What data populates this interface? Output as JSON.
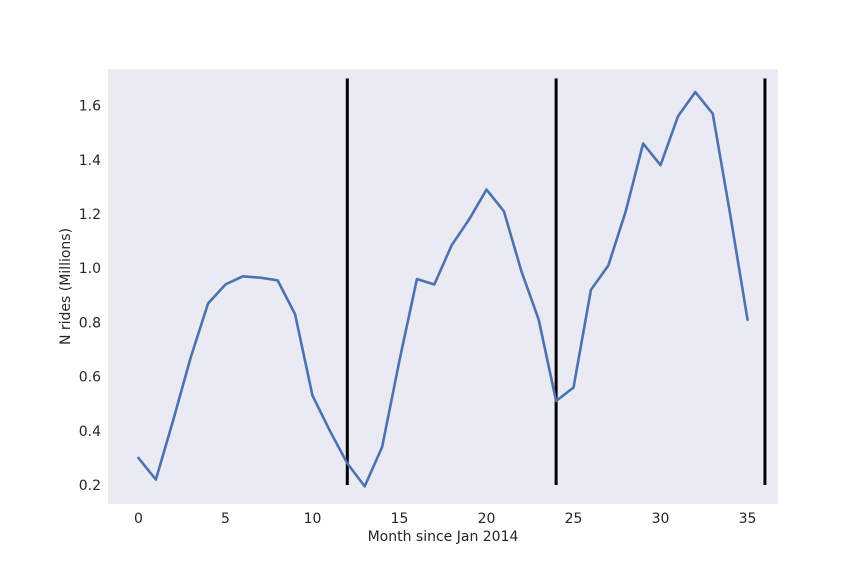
{
  "chart_data": {
    "type": "line",
    "title": "",
    "xlabel": "Month since Jan 2014",
    "ylabel": "N rides (Millions)",
    "xlim": [
      -1.75,
      36.75
    ],
    "ylim": [
      0.13,
      1.735
    ],
    "x_ticks": [
      0,
      5,
      10,
      15,
      20,
      25,
      30,
      35
    ],
    "y_ticks": [
      0.2,
      0.4,
      0.6,
      0.8,
      1.0,
      1.2,
      1.4,
      1.6
    ],
    "x_tick_labels": [
      "0",
      "5",
      "10",
      "15",
      "20",
      "25",
      "30",
      "35"
    ],
    "y_tick_labels": [
      "0.2",
      "0.4",
      "0.6",
      "0.8",
      "1.0",
      "1.2",
      "1.4",
      "1.6"
    ],
    "grid": false,
    "background": "#EAEAF2",
    "series": [
      {
        "color": "#4C72B0",
        "x": [
          0,
          1,
          2,
          3,
          4,
          5,
          6,
          7,
          8,
          9,
          10,
          11,
          12,
          13,
          14,
          15,
          16,
          17,
          18,
          19,
          20,
          21,
          22,
          23,
          24,
          25,
          26,
          27,
          28,
          29,
          30,
          31,
          32,
          33,
          34,
          35
        ],
        "y": [
          0.3,
          0.22,
          0.44,
          0.67,
          0.87,
          0.94,
          0.97,
          0.965,
          0.955,
          0.83,
          0.53,
          0.4,
          0.28,
          0.195,
          0.34,
          0.66,
          0.96,
          0.94,
          1.085,
          1.18,
          1.29,
          1.21,
          0.99,
          0.81,
          0.51,
          0.56,
          0.92,
          1.01,
          1.21,
          1.46,
          1.38,
          1.56,
          1.65,
          1.57,
          1.2,
          0.81
        ]
      }
    ],
    "vertical_lines": {
      "color": "#000000",
      "x": [
        12,
        24,
        36
      ],
      "ymin": 0.2,
      "ymax": 1.7
    }
  }
}
